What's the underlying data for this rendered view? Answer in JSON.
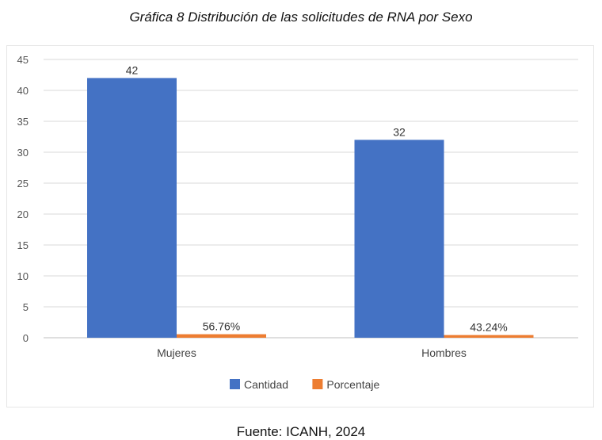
{
  "caption": "Gráfica 8 Distribución de las solicitudes de RNA por Sexo",
  "source": "Fuente: ICANH, 2024",
  "colors": {
    "cantidad": "#4472C4",
    "porcentaje": "#ED7D31",
    "grid": "#d9d9d9"
  },
  "chart_data": {
    "type": "bar",
    "categories": [
      "Mujeres",
      "Hombres"
    ],
    "series": [
      {
        "name": "Cantidad",
        "values": [
          42,
          32
        ],
        "labels": [
          "42",
          "32"
        ]
      },
      {
        "name": "Porcentaje",
        "values": [
          0.5676,
          0.4324
        ],
        "labels": [
          "56.76%",
          "43.24%"
        ]
      }
    ],
    "ylim": [
      0,
      45
    ],
    "yticks": [
      0,
      5,
      10,
      15,
      20,
      25,
      30,
      35,
      40,
      45
    ],
    "grid": true,
    "legend": "bottom"
  }
}
